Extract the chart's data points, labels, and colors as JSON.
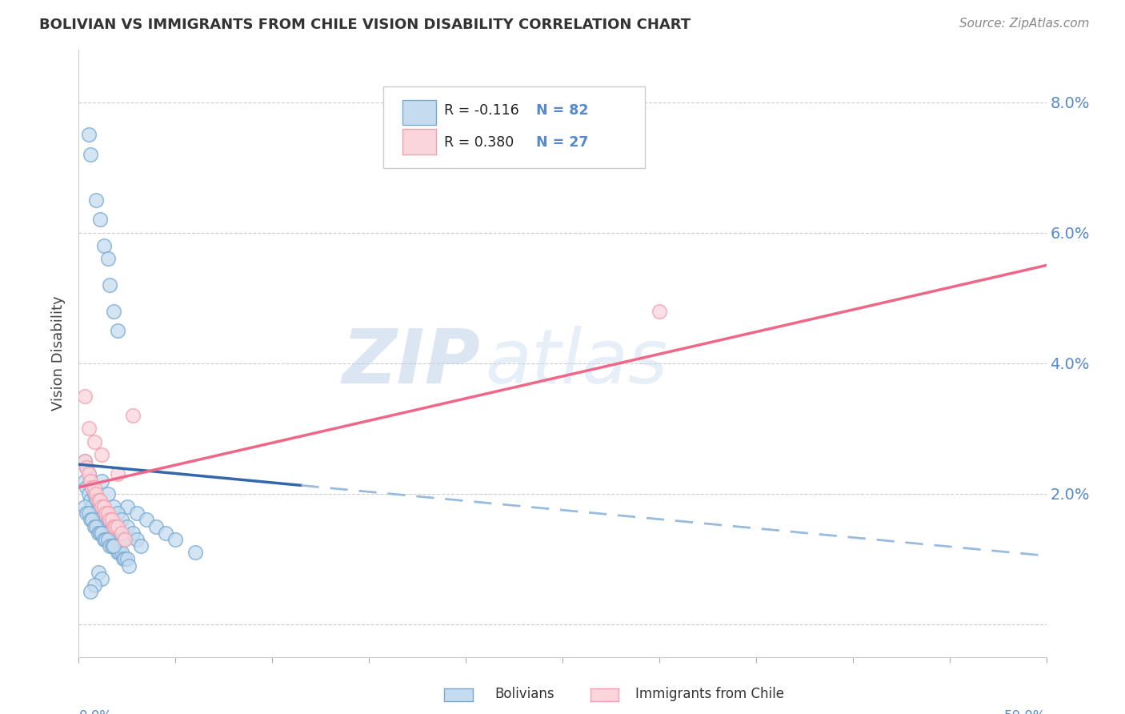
{
  "title": "BOLIVIAN VS IMMIGRANTS FROM CHILE VISION DISABILITY CORRELATION CHART",
  "source": "Source: ZipAtlas.com",
  "ylabel": "Vision Disability",
  "yticks": [
    0.0,
    0.02,
    0.04,
    0.06,
    0.08
  ],
  "ytick_labels": [
    "",
    "2.0%",
    "4.0%",
    "6.0%",
    "8.0%"
  ],
  "xlim": [
    0.0,
    0.5
  ],
  "ylim": [
    -0.005,
    0.088
  ],
  "blue_edge": "#7AAAD0",
  "blue_fill": "#C5DCF0",
  "pink_edge": "#F0A0B0",
  "pink_fill": "#FAD5DC",
  "trend_blue_solid": "#3366AA",
  "trend_blue_dash": "#99BBDD",
  "trend_pink": "#EE6688",
  "wm_zip_color": "#C8D8EE",
  "wm_atlas_color": "#C8D8EE",
  "bolivians_x": [
    0.003,
    0.004,
    0.005,
    0.006,
    0.007,
    0.008,
    0.009,
    0.01,
    0.011,
    0.012,
    0.013,
    0.014,
    0.015,
    0.016,
    0.017,
    0.018,
    0.019,
    0.02,
    0.021,
    0.022,
    0.023,
    0.024,
    0.025,
    0.026,
    0.003,
    0.004,
    0.005,
    0.006,
    0.007,
    0.008,
    0.009,
    0.01,
    0.011,
    0.012,
    0.013,
    0.014,
    0.015,
    0.016,
    0.017,
    0.018,
    0.019,
    0.02,
    0.021,
    0.022,
    0.023,
    0.003,
    0.004,
    0.005,
    0.006,
    0.007,
    0.008,
    0.009,
    0.01,
    0.011,
    0.012,
    0.013,
    0.014,
    0.015,
    0.016,
    0.017,
    0.018,
    0.025,
    0.03,
    0.035,
    0.04,
    0.045,
    0.05,
    0.06,
    0.012,
    0.015,
    0.018,
    0.02,
    0.022,
    0.025,
    0.028,
    0.03,
    0.032,
    0.01,
    0.012,
    0.008,
    0.006
  ],
  "bolivians_y": [
    0.022,
    0.021,
    0.02,
    0.019,
    0.018,
    0.017,
    0.016,
    0.015,
    0.015,
    0.014,
    0.014,
    0.013,
    0.013,
    0.013,
    0.012,
    0.012,
    0.012,
    0.011,
    0.011,
    0.011,
    0.01,
    0.01,
    0.01,
    0.009,
    0.025,
    0.024,
    0.023,
    0.022,
    0.021,
    0.02,
    0.019,
    0.018,
    0.018,
    0.017,
    0.017,
    0.016,
    0.016,
    0.016,
    0.015,
    0.015,
    0.014,
    0.014,
    0.014,
    0.013,
    0.013,
    0.018,
    0.017,
    0.017,
    0.016,
    0.016,
    0.015,
    0.015,
    0.014,
    0.014,
    0.014,
    0.013,
    0.013,
    0.013,
    0.012,
    0.012,
    0.012,
    0.018,
    0.017,
    0.016,
    0.015,
    0.014,
    0.013,
    0.011,
    0.022,
    0.02,
    0.018,
    0.017,
    0.016,
    0.015,
    0.014,
    0.013,
    0.012,
    0.008,
    0.007,
    0.006,
    0.005
  ],
  "bolivians_y_outliers": [
    0.075,
    0.072,
    0.065,
    0.062,
    0.058,
    0.056,
    0.052,
    0.048,
    0.045
  ],
  "bolivians_x_outliers": [
    0.005,
    0.006,
    0.009,
    0.011,
    0.013,
    0.015,
    0.016,
    0.018,
    0.02
  ],
  "chile_x": [
    0.003,
    0.004,
    0.005,
    0.006,
    0.007,
    0.008,
    0.009,
    0.01,
    0.011,
    0.012,
    0.013,
    0.014,
    0.015,
    0.016,
    0.017,
    0.018,
    0.019,
    0.02,
    0.022,
    0.024,
    0.003,
    0.005,
    0.008,
    0.012,
    0.02,
    0.028,
    0.3
  ],
  "chile_y": [
    0.025,
    0.024,
    0.023,
    0.022,
    0.021,
    0.021,
    0.02,
    0.019,
    0.019,
    0.018,
    0.018,
    0.017,
    0.017,
    0.016,
    0.016,
    0.015,
    0.015,
    0.015,
    0.014,
    0.013,
    0.035,
    0.03,
    0.028,
    0.026,
    0.023,
    0.032,
    0.048
  ],
  "trend_blue_x0": 0.0,
  "trend_blue_y0": 0.0245,
  "trend_blue_slope": -0.028,
  "trend_blue_solid_end": 0.115,
  "trend_pink_x0": 0.0,
  "trend_pink_y0": 0.021,
  "trend_pink_slope": 0.068
}
